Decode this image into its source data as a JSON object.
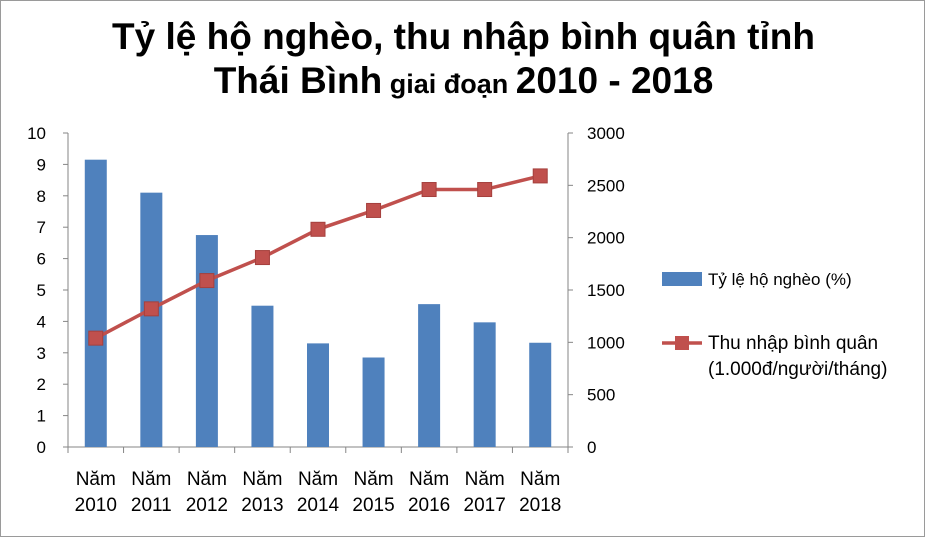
{
  "chart_data": {
    "type": "bar",
    "title_line1": "Tỷ lệ hộ nghèo, thu nhập bình quân tỉnh",
    "title_line2_big1": "Thái Bình",
    "title_line2_small": " giai đoạn ",
    "title_line2_big2": "2010 - 2018",
    "categories": [
      [
        "Năm",
        "2010"
      ],
      [
        "Năm",
        "2011"
      ],
      [
        "Năm",
        "2012"
      ],
      [
        "Năm",
        "2013"
      ],
      [
        "Năm",
        "2014"
      ],
      [
        "Năm",
        "2015"
      ],
      [
        "Năm",
        "2016"
      ],
      [
        "Năm",
        "2017"
      ],
      [
        "Năm",
        "2018"
      ]
    ],
    "series": [
      {
        "name": "Tỷ lệ hộ nghèo (%)",
        "type": "bar",
        "axis": "left",
        "color": "#4f81bd",
        "values": [
          9.15,
          8.1,
          6.75,
          4.5,
          3.3,
          2.85,
          4.55,
          3.97,
          3.32
        ]
      },
      {
        "name_line1": "Thu nhập bình quân",
        "name_line2": "(1.000đ/người/tháng)",
        "type": "line",
        "axis": "right",
        "color": "#c0504d",
        "values": [
          1040,
          1320,
          1590,
          1810,
          2080,
          2260,
          2460,
          2460,
          2590
        ]
      }
    ],
    "y_left": {
      "min": 0,
      "max": 10,
      "ticks": [
        "0",
        "1",
        "2",
        "3",
        "4",
        "5",
        "6",
        "7",
        "8",
        "9",
        "10"
      ]
    },
    "y_right": {
      "min": 0,
      "max": 3000,
      "ticks": [
        "0",
        "500",
        "1000",
        "1500",
        "2000",
        "2500",
        "3000"
      ]
    },
    "legend_position": "right"
  }
}
